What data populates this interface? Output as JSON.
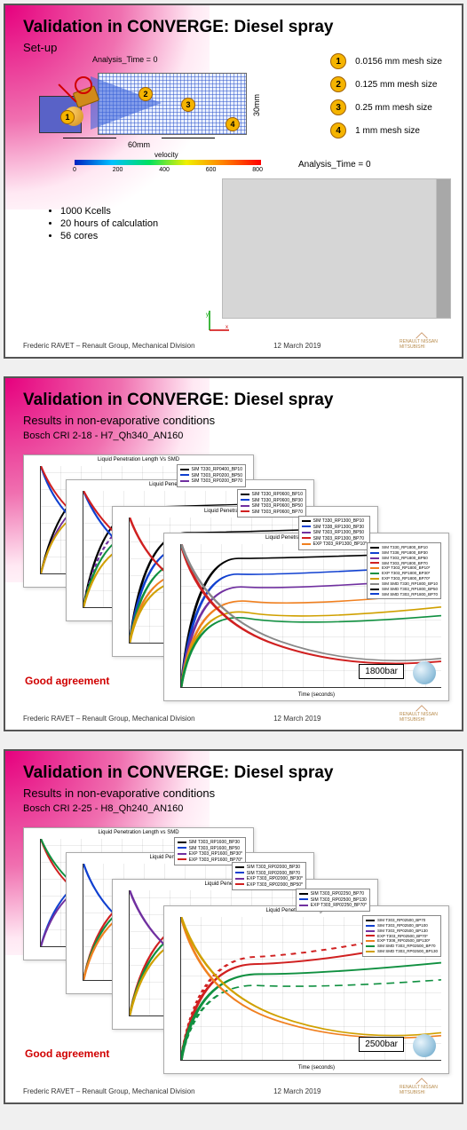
{
  "common": {
    "title": "Validation in CONVERGE: Diesel spray",
    "footer_author": "Frederic RAVET – Renault Group, Mechanical Division",
    "footer_date": "12 March 2019",
    "alliance_label": "RENAULT NISSAN MITSUBISHI"
  },
  "slide1": {
    "subtitle": "Set-up",
    "analysis_label": "Analysis_Time = 0",
    "mesh_items": [
      {
        "n": "1",
        "label": "0.0156 mm mesh size"
      },
      {
        "n": "2",
        "label": "0.125 mm mesh size"
      },
      {
        "n": "3",
        "label": "0.25 mm mesh size"
      },
      {
        "n": "4",
        "label": "1 mm mesh size"
      }
    ],
    "dim_h": "60mm",
    "dim_v": "30mm",
    "velocity_label": "velocity",
    "colorbar_ticks": [
      "0",
      "200",
      "400",
      "600",
      "800"
    ],
    "bullets": [
      "1000 Kcells",
      "20 hours of calculation",
      "56 cores"
    ]
  },
  "slide2": {
    "subtitle": "Results in non-evaporative conditions",
    "case": "Bosch CRI 2-18 - H7_Qh340_AN160",
    "chart_title": "Liquid Penetration Length Vs SMD",
    "xlabel": "Time (seconds)",
    "pressure": "1800bar",
    "good": "Good agreement",
    "legends": {
      "c1": [
        "SIM T330_RP0400_BP10",
        "SIM T303_RP0200_BP50",
        "SIM T303_RP0200_BP70"
      ],
      "c2": [
        "SIM T330_RP0600_BP10",
        "SIM T330_RP0600_BP30",
        "SIM T303_RP0600_BP50",
        "SIM T303_RP0600_BP70"
      ],
      "c3": [
        "SIM T330_RP1300_BP10",
        "SIM T338_RP1300_BP30",
        "SIM T303_RP1300_BP50",
        "SIM T303_RP1300_BP70",
        "EXP T303_RP1300_BP10*"
      ],
      "c4": [
        "SIM T330_RP1800_BP10",
        "SIM T338_RP1800_BP30",
        "SIM T303_RP1800_BP50",
        "SIM T303_RP1800_BP70",
        "EXP T303_RP1800_BP10*",
        "EXP T303_RP1800_BP30*",
        "EXP T303_RP1800_BP70*",
        "SIM SMD T330_RP1800_BP10",
        "SIM SMD T303_RP1800_BP50",
        "SIM SMD T303_RP1800_BP70"
      ]
    },
    "colors": {
      "black": "#000000",
      "blue": "#1040d0",
      "purple": "#7030a0",
      "red": "#d02020",
      "orange": "#f08020",
      "green": "#109040",
      "gold": "#d0a000",
      "gray": "#888888"
    }
  },
  "slide3": {
    "subtitle": "Results in non-evaporative conditions",
    "case": "Bosch CRI 2-25 - H8_Qh240_AN160",
    "chart_title": "Liquid Penetration Length vs SMD",
    "xlabel": "Time (seconds)",
    "pressure": "2500bar",
    "good": "Good agreement",
    "legends": {
      "c1": [
        "SIM T303_RP1600_BP30",
        "SIM T303_RP1600_BP50",
        "EXP T303_RP1600_BP30*",
        "EXP T303_RP1600_BP70*"
      ],
      "c2": [
        "SIM T303_RP02000_BP30",
        "SIM T303_RP02000_BP70",
        "EXP T303_RP02000_BP30*",
        "EXP T303_RP02000_BP50*"
      ],
      "c3": [
        "SIM T303_RP02250_BP70",
        "SIM T303_RP02500_BP130",
        "EXP T303_RP02250_BP70*"
      ],
      "c4": [
        "SIM T303_RP02500_BP70",
        "SIM T303_RP02500_BP100",
        "SIM T303_RP02500_BP130",
        "EXP T303_RP02500_BP70*",
        "EXP T308_RP02500_BP130*",
        "SIM SMD T303_RP02500_BP70",
        "SIM SMD T303_RP02500_BP130"
      ]
    },
    "colors": {
      "red": "#d02020",
      "green": "#109040",
      "blue": "#1040d0",
      "purple": "#7030a0",
      "orange": "#f08020",
      "gold": "#d0a000"
    }
  }
}
